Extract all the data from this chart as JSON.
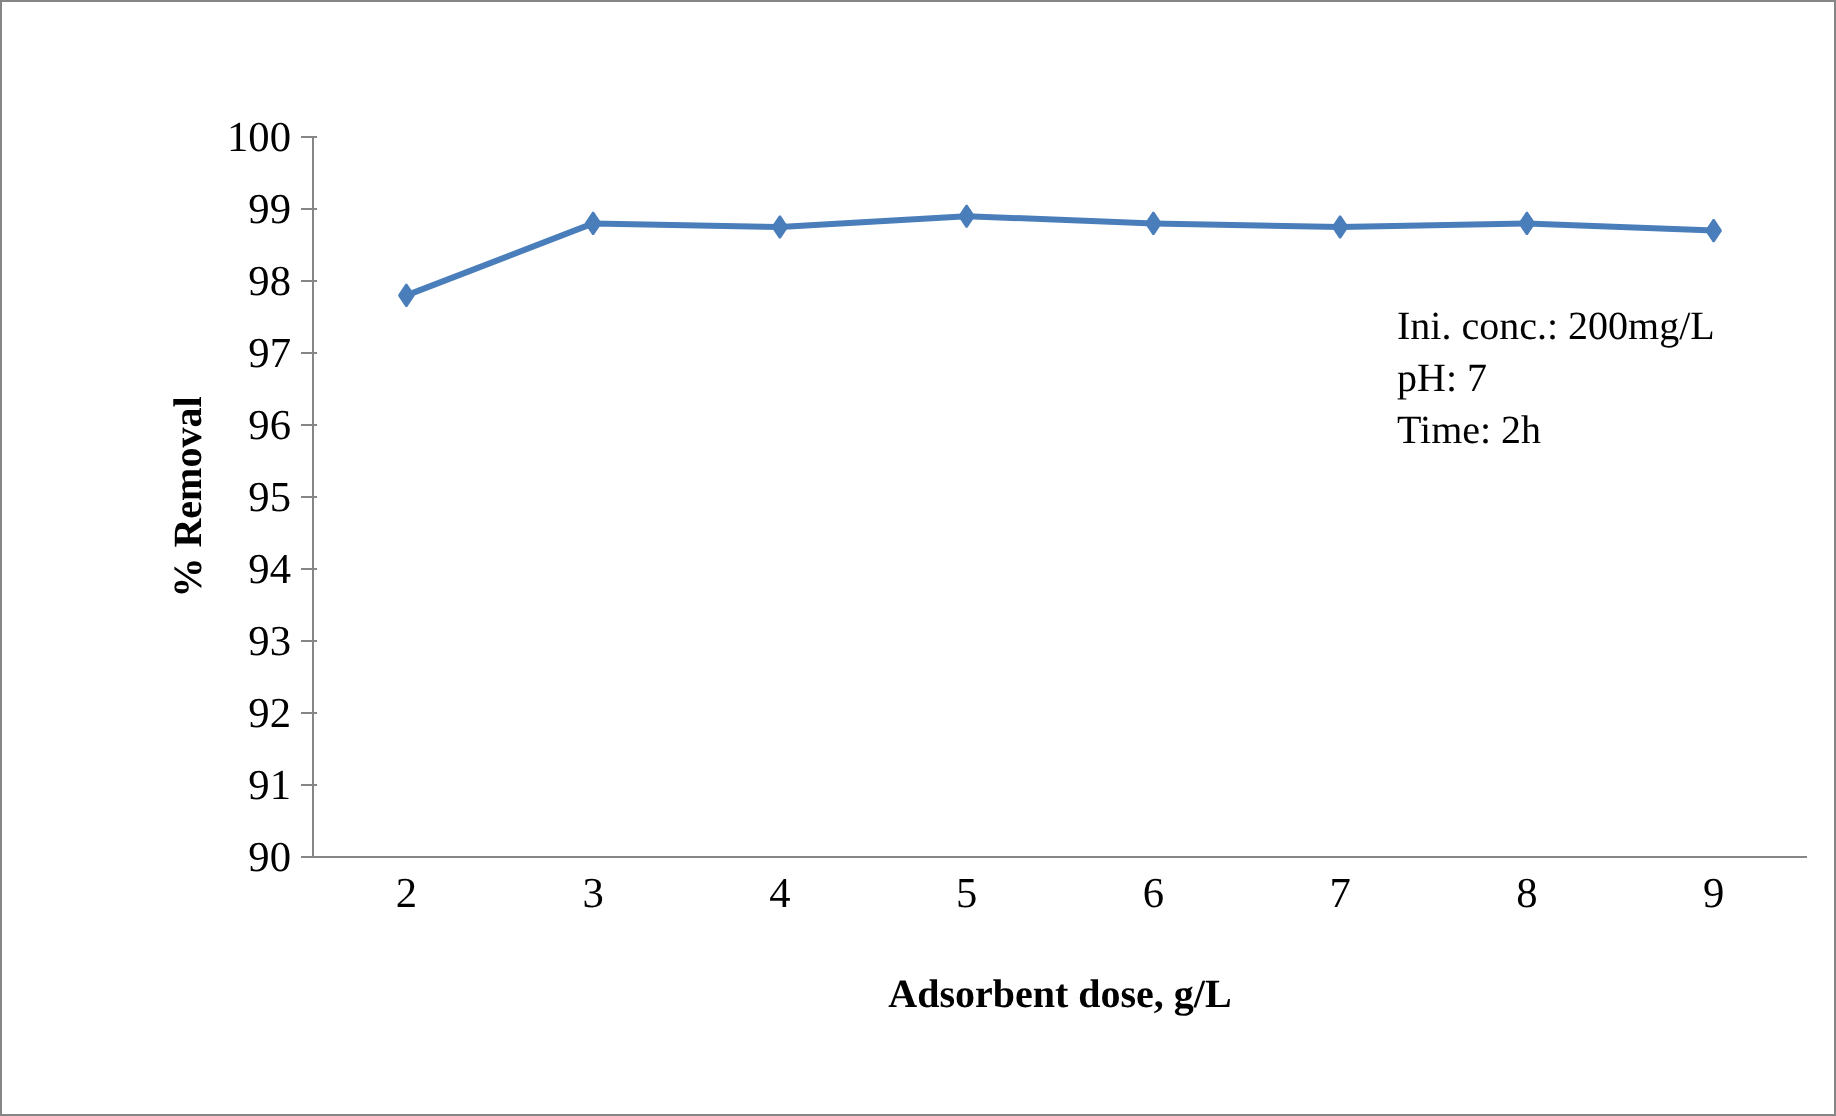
{
  "chart_data": {
    "type": "line",
    "xlabel": "Adsorbent dose, g/L",
    "ylabel": "% Removal",
    "categories": [
      "2",
      "3",
      "4",
      "5",
      "6",
      "7",
      "8",
      "9"
    ],
    "series": [
      {
        "color": "#4a7ebb",
        "values": [
          97.8,
          98.8,
          98.75,
          98.9,
          98.8,
          98.75,
          98.8,
          98.7
        ]
      }
    ],
    "ylim": [
      90,
      100
    ],
    "yticks": [
      90,
      91,
      92,
      93,
      94,
      95,
      96,
      97,
      98,
      99,
      100
    ],
    "grid": false,
    "marker": "diamond",
    "line_style": "solid",
    "annotations": [
      "Ini. conc.: 200mg/L",
      "pH: 7",
      "Time: 2h"
    ]
  }
}
